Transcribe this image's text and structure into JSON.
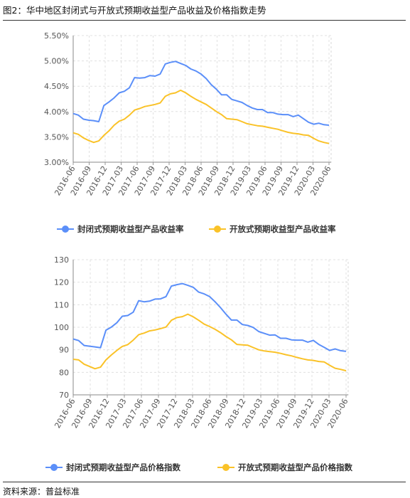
{
  "figure_title": "图2：华中地区封闭式与开放式预期收益型产品收益及价格指数走势",
  "source_note": "资料来源：普益标准",
  "chart_data": [
    {
      "type": "line",
      "x_tick_labels": [
        "2016-06",
        "2016-09",
        "2016-12",
        "2017-03",
        "2017-06",
        "2017-09",
        "2017-12",
        "2018-03",
        "2018-06",
        "2018-09",
        "2018-12",
        "2019-03",
        "2019-06",
        "2019-09",
        "2019-12",
        "2020-03",
        "2020-06"
      ],
      "y_tick_labels": [
        "3.00%",
        "3.50%",
        "4.00%",
        "4.50%",
        "5.00%",
        "5.50%"
      ],
      "ylim": [
        3.0,
        5.5
      ],
      "grid": true,
      "legend_position": "bottom",
      "series": [
        {
          "name": "封闭式预期收益型产品收益率",
          "color": "#5b8ff9",
          "values": [
            3.96,
            3.93,
            3.85,
            3.83,
            3.82,
            3.8,
            4.12,
            4.19,
            4.27,
            4.37,
            4.4,
            4.47,
            4.67,
            4.66,
            4.67,
            4.71,
            4.7,
            4.74,
            4.94,
            4.97,
            4.99,
            4.95,
            4.91,
            4.84,
            4.8,
            4.74,
            4.65,
            4.53,
            4.44,
            4.33,
            4.33,
            4.24,
            4.21,
            4.18,
            4.12,
            4.07,
            4.04,
            4.04,
            3.98,
            3.98,
            3.95,
            3.94,
            3.94,
            3.9,
            3.93,
            3.86,
            3.79,
            3.75,
            3.77,
            3.74,
            3.73
          ]
        },
        {
          "name": "开放式预期收益型产品收益率",
          "color": "#fac228",
          "values": [
            3.58,
            3.55,
            3.48,
            3.43,
            3.39,
            3.42,
            3.53,
            3.62,
            3.73,
            3.81,
            3.85,
            3.93,
            4.03,
            4.06,
            4.1,
            4.12,
            4.14,
            4.17,
            4.3,
            4.35,
            4.37,
            4.42,
            4.37,
            4.3,
            4.24,
            4.19,
            4.14,
            4.07,
            4.0,
            3.94,
            3.86,
            3.85,
            3.84,
            3.8,
            3.76,
            3.74,
            3.72,
            3.71,
            3.69,
            3.67,
            3.65,
            3.62,
            3.59,
            3.57,
            3.56,
            3.54,
            3.53,
            3.47,
            3.42,
            3.39,
            3.37
          ]
        }
      ]
    },
    {
      "type": "line",
      "x_tick_labels": [
        "2016-06",
        "2016-09",
        "2016-12",
        "2017-03",
        "2017-06",
        "2017-09",
        "2017-12",
        "2018-03",
        "2018-06",
        "2018-09",
        "2018-12",
        "2019-03",
        "2019-06",
        "2019-09",
        "2019-12",
        "2020-03",
        "2020-06"
      ],
      "y_tick_labels": [
        "70",
        "80",
        "90",
        "100",
        "110",
        "120",
        "130"
      ],
      "ylim": [
        70,
        130
      ],
      "grid": true,
      "legend_position": "bottom",
      "series": [
        {
          "name": "封闭式预期收益型产品价格指数",
          "color": "#5b8ff9",
          "values": [
            94.8,
            94.1,
            91.9,
            91.6,
            91.3,
            90.9,
            98.7,
            100.1,
            102.0,
            104.9,
            105.2,
            106.7,
            111.8,
            111.3,
            111.6,
            112.5,
            112.6,
            113.6,
            118.3,
            118.9,
            119.4,
            118.6,
            117.7,
            115.6,
            114.8,
            113.6,
            111.3,
            108.7,
            105.8,
            103.2,
            103.2,
            101.2,
            100.8,
            99.9,
            98.1,
            97.3,
            96.5,
            96.6,
            95.1,
            95.1,
            94.4,
            94.3,
            94.3,
            93.4,
            94.2,
            92.4,
            91.1,
            89.7,
            90.4,
            89.6,
            89.3
          ]
        },
        {
          "name": "开放式预期收益型产品价格指数",
          "color": "#fac228",
          "values": [
            85.8,
            85.5,
            83.6,
            82.6,
            81.6,
            82.3,
            85.5,
            87.7,
            89.7,
            91.5,
            92.3,
            94.3,
            96.7,
            97.4,
            98.4,
            98.8,
            99.4,
            100.1,
            103.1,
            104.3,
            104.7,
            105.8,
            104.6,
            103.1,
            101.4,
            100.3,
            99.1,
            97.6,
            95.9,
            94.4,
            92.4,
            92.2,
            92.0,
            91.0,
            90.0,
            89.5,
            89.2,
            88.9,
            88.4,
            87.8,
            87.3,
            86.6,
            86.0,
            85.5,
            85.3,
            84.8,
            84.6,
            83.1,
            81.8,
            81.3,
            80.7
          ]
        }
      ]
    }
  ]
}
